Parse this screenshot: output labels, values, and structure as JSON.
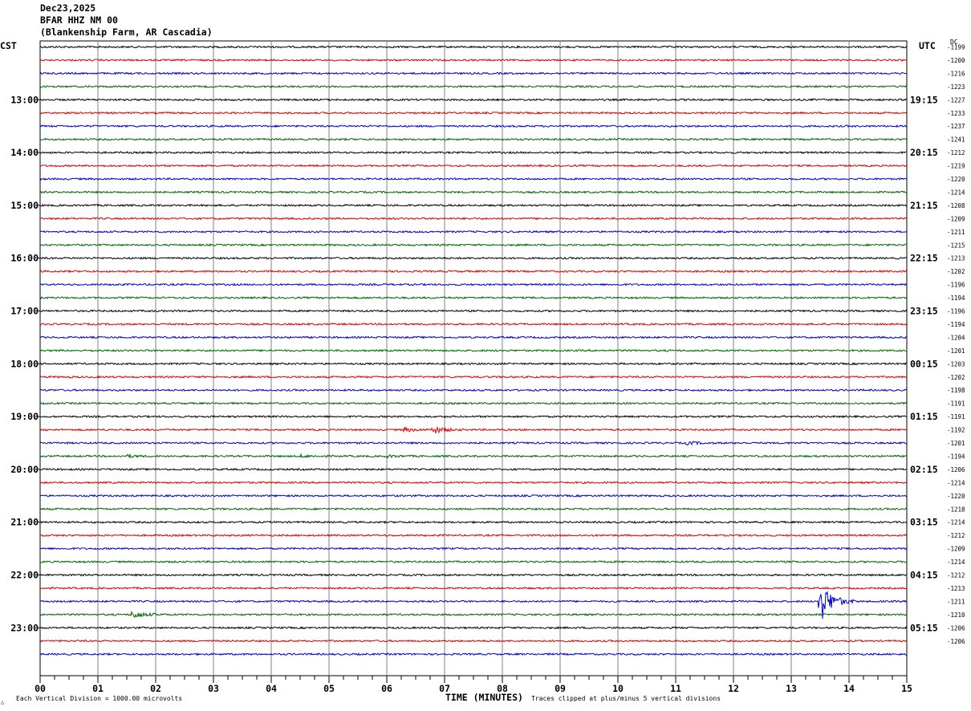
{
  "header": {
    "date": "Dec23,2025",
    "station": "BFAR HHZ NM 00",
    "location": "(Blankenship Farm, AR Cascadia)"
  },
  "left_tz": "CST",
  "right_tz": "UTC",
  "dc_label": "DC",
  "footer": {
    "scale_note": "Each Vertical Division = 1000.00 microvolts",
    "xlabel": "TIME (MINUTES)",
    "clip_note": "Traces clipped at plus/minus 5 vertical divisions"
  },
  "colors": {
    "trace_cycle": [
      "#000000",
      "#dd0000",
      "#0000cc",
      "#006600"
    ],
    "grid": "#808080"
  },
  "chart_data": {
    "type": "line",
    "subtype": "helicorder",
    "title": "BFAR HHZ NM 00",
    "xlabel": "TIME (MINUTES)",
    "x_ticks": [
      "00",
      "01",
      "02",
      "03",
      "04",
      "05",
      "06",
      "07",
      "08",
      "09",
      "10",
      "11",
      "12",
      "13",
      "14",
      "15"
    ],
    "xlim": [
      0,
      15
    ],
    "left_hour_labels": [
      "13:00",
      "14:00",
      "15:00",
      "16:00",
      "17:00",
      "18:00",
      "19:00",
      "20:00",
      "21:00",
      "22:00",
      "23:00"
    ],
    "right_hour_labels": [
      "19:15",
      "20:15",
      "21:15",
      "22:15",
      "23:15",
      "00:15",
      "01:15",
      "02:15",
      "03:15",
      "04:15",
      "05:15"
    ],
    "dc_offsets": [
      "-1199",
      "-1200",
      "-1216",
      "-1223",
      "-1227",
      "-1233",
      "-1237",
      "-1241",
      "-1212",
      "-1219",
      "-1220",
      "-1214",
      "-1208",
      "-1209",
      "-1211",
      "-1215",
      "-1213",
      "-1202",
      "-1196",
      "-1194",
      "-1196",
      "-1194",
      "-1204",
      "-1201",
      "-1203",
      "-1202",
      "-1198",
      "-1191",
      "-1191",
      "-1192",
      "-1201",
      "-1194",
      "-1206",
      "-1214",
      "-1220",
      "-1218",
      "-1214",
      "-1212",
      "-1209",
      "-1214",
      "-1212",
      "-1213",
      "-1211",
      "-1210",
      "-1206",
      "-1206"
    ],
    "traces": 47,
    "events": [
      {
        "trace": 29,
        "minute": 6.3,
        "amplitude": 1.0
      },
      {
        "trace": 29,
        "minute": 6.8,
        "amplitude": 2.0
      },
      {
        "trace": 30,
        "minute": 11.2,
        "amplitude": 0.8
      },
      {
        "trace": 31,
        "minute": 1.5,
        "amplitude": 0.6
      },
      {
        "trace": 31,
        "minute": 4.5,
        "amplitude": 0.6
      },
      {
        "trace": 31,
        "minute": 6.0,
        "amplitude": 0.5
      },
      {
        "trace": 42,
        "minute": 13.5,
        "amplitude": 12.0
      },
      {
        "trace": 43,
        "minute": 1.6,
        "amplitude": 2.0
      }
    ]
  }
}
